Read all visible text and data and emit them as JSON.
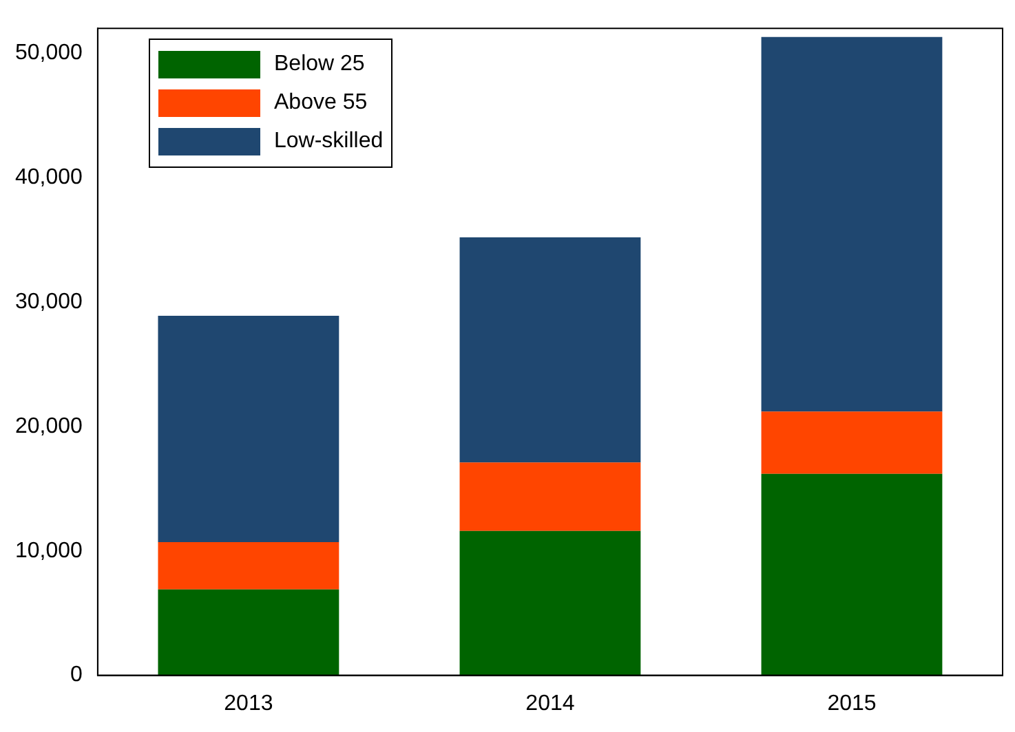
{
  "chart_data": {
    "type": "bar",
    "stacked": true,
    "categories": [
      "2013",
      "2014",
      "2015"
    ],
    "series": [
      {
        "name": "Below 25",
        "color": "#006400",
        "values": [
          6900,
          11600,
          16200
        ]
      },
      {
        "name": "Above 55",
        "color": "#ff4500",
        "values": [
          3800,
          5500,
          5000
        ]
      },
      {
        "name": "Low-skilled",
        "color": "#1f4770",
        "values": [
          18200,
          18100,
          30100
        ]
      }
    ],
    "ylim": [
      0,
      52000
    ],
    "yticks": [
      {
        "value": 0,
        "label": "0"
      },
      {
        "value": 10000,
        "label": "10,000"
      },
      {
        "value": 20000,
        "label": "20,000"
      },
      {
        "value": 30000,
        "label": "30,000"
      },
      {
        "value": 40000,
        "label": "40,000"
      },
      {
        "value": 50000,
        "label": "50,000"
      }
    ],
    "grid": false,
    "legend": "top left"
  }
}
